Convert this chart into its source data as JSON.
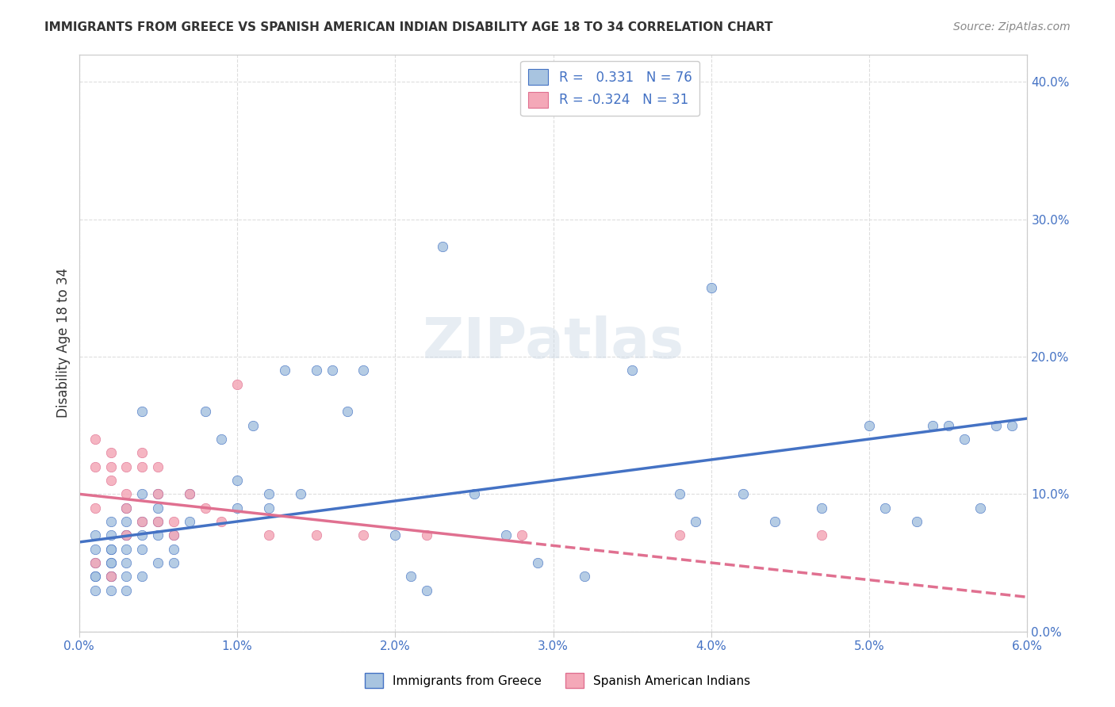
{
  "title": "IMMIGRANTS FROM GREECE VS SPANISH AMERICAN INDIAN DISABILITY AGE 18 TO 34 CORRELATION CHART",
  "source": "Source: ZipAtlas.com",
  "xlabel": "",
  "ylabel": "Disability Age 18 to 34",
  "xlim": [
    0.0,
    0.06
  ],
  "ylim": [
    0.0,
    0.42
  ],
  "xticks": [
    0.0,
    0.01,
    0.02,
    0.03,
    0.04,
    0.05,
    0.06
  ],
  "yticks": [
    0.0,
    0.1,
    0.2,
    0.3,
    0.4
  ],
  "blue_R": 0.331,
  "blue_N": 76,
  "pink_R": -0.324,
  "pink_N": 31,
  "blue_color": "#a8c4e0",
  "pink_color": "#f4a8b8",
  "blue_line_color": "#4472c4",
  "pink_line_color": "#f4a8b8",
  "watermark": "ZIPatlas",
  "background_color": "#ffffff",
  "grid_color": "#dddddd",
  "blue_scatter_x": [
    0.001,
    0.001,
    0.001,
    0.001,
    0.001,
    0.001,
    0.002,
    0.002,
    0.002,
    0.002,
    0.002,
    0.002,
    0.002,
    0.002,
    0.002,
    0.003,
    0.003,
    0.003,
    0.003,
    0.003,
    0.003,
    0.003,
    0.003,
    0.004,
    0.004,
    0.004,
    0.004,
    0.004,
    0.004,
    0.005,
    0.005,
    0.005,
    0.005,
    0.005,
    0.006,
    0.006,
    0.006,
    0.007,
    0.007,
    0.008,
    0.009,
    0.01,
    0.01,
    0.011,
    0.012,
    0.012,
    0.013,
    0.014,
    0.015,
    0.016,
    0.017,
    0.018,
    0.02,
    0.021,
    0.022,
    0.023,
    0.025,
    0.027,
    0.029,
    0.032,
    0.035,
    0.038,
    0.039,
    0.04,
    0.042,
    0.044,
    0.047,
    0.05,
    0.051,
    0.053,
    0.054,
    0.055,
    0.056,
    0.057,
    0.058,
    0.059
  ],
  "blue_scatter_y": [
    0.07,
    0.06,
    0.05,
    0.04,
    0.04,
    0.03,
    0.08,
    0.07,
    0.06,
    0.06,
    0.05,
    0.05,
    0.04,
    0.04,
    0.03,
    0.09,
    0.08,
    0.07,
    0.07,
    0.06,
    0.05,
    0.04,
    0.03,
    0.16,
    0.1,
    0.08,
    0.07,
    0.06,
    0.04,
    0.1,
    0.09,
    0.08,
    0.07,
    0.05,
    0.07,
    0.06,
    0.05,
    0.1,
    0.08,
    0.16,
    0.14,
    0.11,
    0.09,
    0.15,
    0.1,
    0.09,
    0.19,
    0.1,
    0.19,
    0.19,
    0.16,
    0.19,
    0.07,
    0.04,
    0.03,
    0.28,
    0.1,
    0.07,
    0.05,
    0.04,
    0.19,
    0.1,
    0.08,
    0.25,
    0.1,
    0.08,
    0.09,
    0.15,
    0.09,
    0.08,
    0.15,
    0.15,
    0.14,
    0.09,
    0.15,
    0.15
  ],
  "pink_scatter_x": [
    0.001,
    0.001,
    0.001,
    0.001,
    0.002,
    0.002,
    0.002,
    0.002,
    0.003,
    0.003,
    0.003,
    0.003,
    0.004,
    0.004,
    0.004,
    0.005,
    0.005,
    0.005,
    0.006,
    0.006,
    0.007,
    0.008,
    0.009,
    0.01,
    0.012,
    0.015,
    0.018,
    0.022,
    0.028,
    0.038,
    0.047
  ],
  "pink_scatter_y": [
    0.14,
    0.12,
    0.09,
    0.05,
    0.13,
    0.12,
    0.11,
    0.04,
    0.12,
    0.1,
    0.09,
    0.07,
    0.13,
    0.12,
    0.08,
    0.12,
    0.1,
    0.08,
    0.08,
    0.07,
    0.1,
    0.09,
    0.08,
    0.18,
    0.07,
    0.07,
    0.07,
    0.07,
    0.07,
    0.07,
    0.07
  ],
  "blue_trendline_x": [
    0.0,
    0.06
  ],
  "blue_trendline_y": [
    0.065,
    0.155
  ],
  "pink_trendline_x": [
    0.0,
    0.06
  ],
  "pink_trendline_y": [
    0.1,
    0.025
  ],
  "pink_trendline_dashed_start": 0.028
}
